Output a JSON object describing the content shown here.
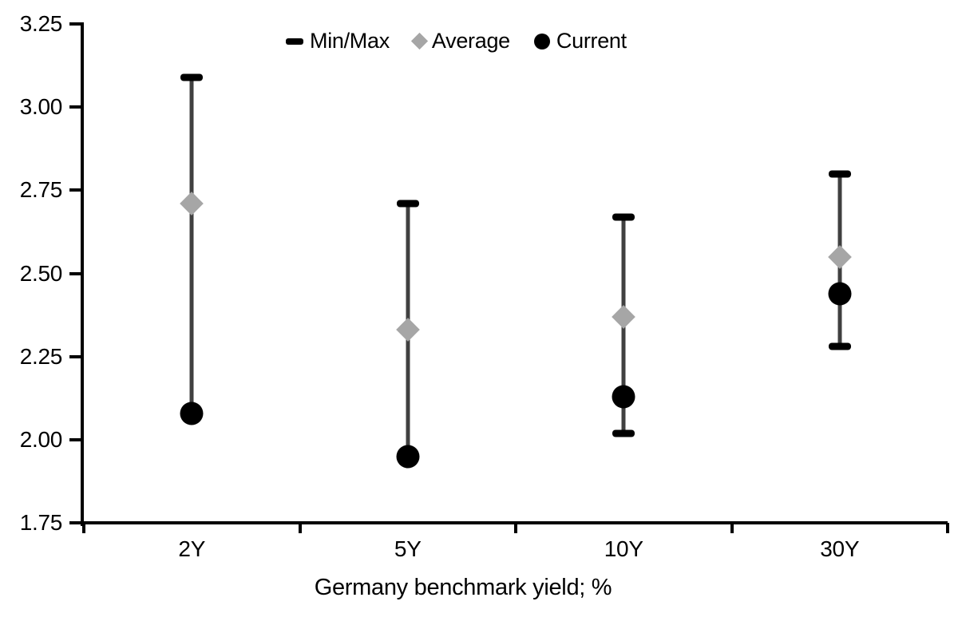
{
  "chart_data": {
    "type": "scatter",
    "subtype": "min-max-range-dot-plot",
    "title": "",
    "xlabel": "Germany benchmark yield; %",
    "categories": [
      "2Y",
      "5Y",
      "10Y",
      "30Y"
    ],
    "ylim": [
      1.75,
      3.25
    ],
    "ytick_labels": [
      "3.25",
      "3.00",
      "2.75",
      "2.50",
      "2.25",
      "2.00",
      "1.75"
    ],
    "grid": false,
    "legend_position": "top-center",
    "series": [
      {
        "name": "Min/Max",
        "marker": "dash",
        "color": "#000000",
        "role": "range",
        "min": [
          2.08,
          1.95,
          2.02,
          2.28
        ],
        "max": [
          3.09,
          2.71,
          2.67,
          2.8
        ]
      },
      {
        "name": "Average",
        "marker": "diamond",
        "color": "#A6A6A6",
        "values": [
          2.71,
          2.33,
          2.37,
          2.55
        ]
      },
      {
        "name": "Current",
        "marker": "circle",
        "color": "#000000",
        "values": [
          2.08,
          1.95,
          2.13,
          2.44
        ]
      }
    ],
    "colors": {
      "range_line": "#404040",
      "axis": "#000000",
      "text": "#000000"
    }
  }
}
